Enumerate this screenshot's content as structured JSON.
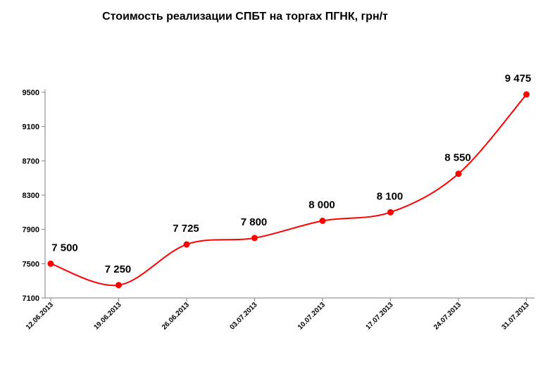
{
  "chart_data": {
    "type": "line",
    "title": "Стоимость реализации СПБТ на торгах ПГНК, грн/т",
    "xlabel": "",
    "ylabel": "",
    "categories": [
      "12.06.2013",
      "19.06.2013",
      "26.06.2013",
      "03.07.2013",
      "10.07.2013",
      "17.07.2013",
      "24.07.2013",
      "31.07.2013"
    ],
    "series": [
      {
        "values": [
          7500,
          7250,
          7725,
          7800,
          8000,
          8100,
          8550,
          9475
        ],
        "labels": [
          "7 500",
          "7 250",
          "7 725",
          "7 800",
          "8 000",
          "8 100",
          "8 550",
          "9 475"
        ],
        "color": "#ff0000"
      }
    ],
    "ylim": [
      7100,
      9500
    ],
    "yticks": [
      7100,
      7500,
      7900,
      8300,
      8700,
      9100,
      9500
    ],
    "grid": false,
    "legend": "none",
    "smooth": true
  }
}
